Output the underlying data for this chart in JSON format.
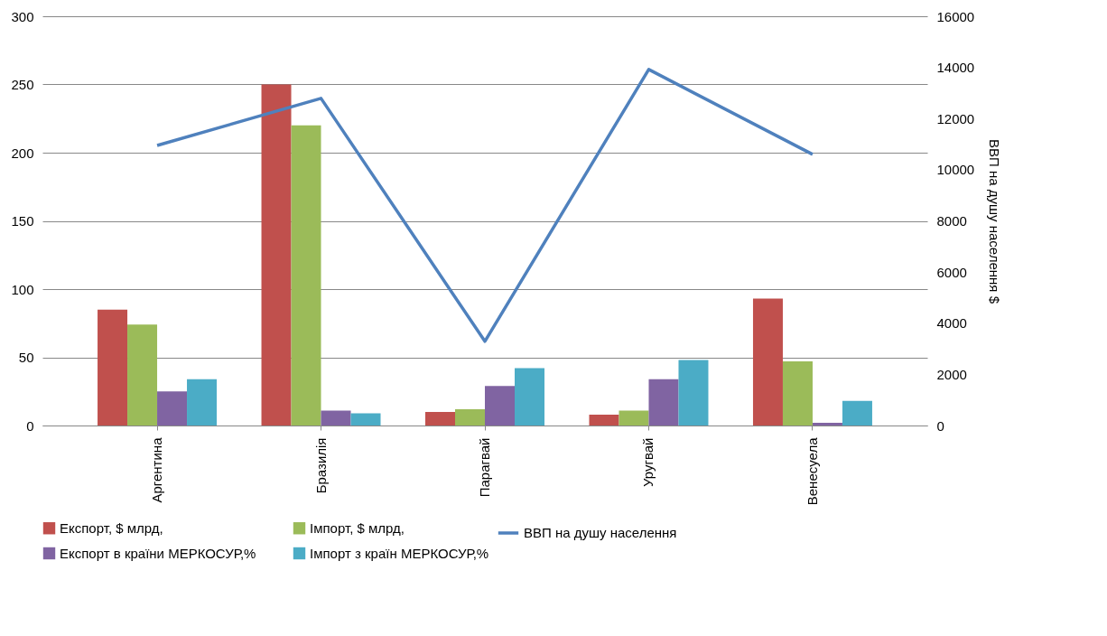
{
  "chart_data": {
    "type": "bar",
    "categories": [
      "Аргентина",
      "Бразилія",
      "Парагвай",
      "Уругвай",
      "Венесуела"
    ],
    "series": [
      {
        "name": "Експорт, $ млрд,",
        "color": "#c0504d",
        "values": [
          85,
          250,
          10,
          8,
          93
        ]
      },
      {
        "name": "Імпорт, $ млрд,",
        "color": "#9bbb59",
        "values": [
          74,
          220,
          12,
          11,
          47
        ]
      },
      {
        "name": "Експорт в країни МЕРКОСУР,%",
        "color": "#8064a2",
        "values": [
          25,
          11,
          29,
          34,
          2
        ]
      },
      {
        "name": "Імпорт з країн МЕРКОСУР,%",
        "color": "#4bacc6",
        "values": [
          34,
          9,
          42,
          48,
          18
        ]
      },
      {
        "name": "ВВП  на душу населення",
        "color": "#4f81bd",
        "type": "line",
        "axis": "y2",
        "values": [
          10950,
          12790,
          3290,
          13920,
          10600
        ]
      }
    ],
    "ylim": [
      0,
      300
    ],
    "yticks": [
      0,
      50,
      100,
      150,
      200,
      250,
      300
    ],
    "y2lim": [
      0,
      16000
    ],
    "y2ticks": [
      0,
      2000,
      4000,
      6000,
      8000,
      10000,
      12000,
      14000,
      16000
    ],
    "y2label": "ВВП на душу населення $",
    "grid": "y",
    "legend": "bottom"
  }
}
